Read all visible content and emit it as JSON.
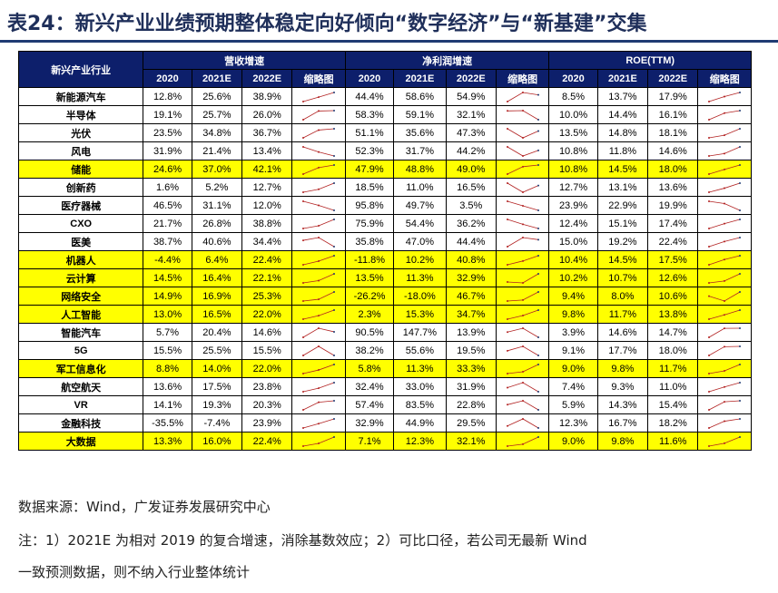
{
  "title": "表24：新兴产业业绩预期整体稳定向好倾向“数字经济”与“新基建”交集",
  "header": {
    "corner": "新兴产业行业",
    "groups": [
      "营收增速",
      "净利润增速",
      "ROE(TTM)"
    ],
    "subcols": [
      "2020",
      "2021E",
      "2022E",
      "缩略图"
    ]
  },
  "rows": [
    {
      "name": "新能源汽车",
      "hl": false,
      "rev": [
        "12.8%",
        "25.6%",
        "38.9%"
      ],
      "np": [
        "44.4%",
        "58.6%",
        "54.9%"
      ],
      "roe": [
        "8.5%",
        "13.7%",
        "17.9%"
      ]
    },
    {
      "name": "半导体",
      "hl": false,
      "rev": [
        "19.1%",
        "25.7%",
        "26.0%"
      ],
      "np": [
        "58.3%",
        "59.1%",
        "32.1%"
      ],
      "roe": [
        "10.0%",
        "14.4%",
        "16.1%"
      ]
    },
    {
      "name": "光伏",
      "hl": false,
      "rev": [
        "23.5%",
        "34.8%",
        "36.7%"
      ],
      "np": [
        "51.1%",
        "35.6%",
        "47.3%"
      ],
      "roe": [
        "13.5%",
        "14.8%",
        "18.1%"
      ]
    },
    {
      "name": "风电",
      "hl": false,
      "rev": [
        "31.9%",
        "21.4%",
        "13.4%"
      ],
      "np": [
        "52.3%",
        "31.7%",
        "44.2%"
      ],
      "roe": [
        "10.8%",
        "11.8%",
        "14.6%"
      ]
    },
    {
      "name": "储能",
      "hl": true,
      "rev": [
        "24.6%",
        "37.0%",
        "42.1%"
      ],
      "np": [
        "47.9%",
        "48.8%",
        "49.0%"
      ],
      "roe": [
        "10.8%",
        "14.5%",
        "18.0%"
      ]
    },
    {
      "name": "创新药",
      "hl": false,
      "rev": [
        "1.6%",
        "5.2%",
        "12.7%"
      ],
      "np": [
        "18.5%",
        "11.0%",
        "16.5%"
      ],
      "roe": [
        "12.7%",
        "13.1%",
        "13.6%"
      ]
    },
    {
      "name": "医疗器械",
      "hl": false,
      "rev": [
        "46.5%",
        "31.1%",
        "12.0%"
      ],
      "np": [
        "95.8%",
        "49.7%",
        "3.5%"
      ],
      "roe": [
        "23.9%",
        "22.9%",
        "19.9%"
      ]
    },
    {
      "name": "CXO",
      "hl": false,
      "rev": [
        "21.7%",
        "26.8%",
        "38.8%"
      ],
      "np": [
        "75.9%",
        "54.4%",
        "36.2%"
      ],
      "roe": [
        "12.4%",
        "15.1%",
        "17.4%"
      ]
    },
    {
      "name": "医美",
      "hl": false,
      "rev": [
        "38.7%",
        "40.6%",
        "34.4%"
      ],
      "np": [
        "35.8%",
        "47.0%",
        "44.4%"
      ],
      "roe": [
        "15.0%",
        "19.2%",
        "22.4%"
      ]
    },
    {
      "name": "机器人",
      "hl": true,
      "rev": [
        "-4.4%",
        "6.4%",
        "22.4%"
      ],
      "np": [
        "-11.8%",
        "10.2%",
        "40.8%"
      ],
      "roe": [
        "10.4%",
        "14.5%",
        "17.5%"
      ]
    },
    {
      "name": "云计算",
      "hl": true,
      "rev": [
        "14.5%",
        "16.4%",
        "22.1%"
      ],
      "np": [
        "13.5%",
        "11.3%",
        "32.9%"
      ],
      "roe": [
        "10.2%",
        "10.7%",
        "12.6%"
      ]
    },
    {
      "name": "网络安全",
      "hl": true,
      "rev": [
        "14.9%",
        "16.9%",
        "25.3%"
      ],
      "np": [
        "-26.2%",
        "-18.0%",
        "46.7%"
      ],
      "roe": [
        "9.4%",
        "8.0%",
        "10.6%"
      ]
    },
    {
      "name": "人工智能",
      "hl": true,
      "rev": [
        "13.0%",
        "16.5%",
        "22.0%"
      ],
      "np": [
        "2.3%",
        "15.3%",
        "34.7%"
      ],
      "roe": [
        "9.8%",
        "11.7%",
        "13.8%"
      ]
    },
    {
      "name": "智能汽车",
      "hl": false,
      "rev": [
        "5.7%",
        "20.4%",
        "14.6%"
      ],
      "np": [
        "90.5%",
        "147.7%",
        "13.9%"
      ],
      "roe": [
        "3.9%",
        "14.6%",
        "14.7%"
      ]
    },
    {
      "name": "5G",
      "hl": false,
      "rev": [
        "15.5%",
        "25.5%",
        "15.5%"
      ],
      "np": [
        "38.2%",
        "55.6%",
        "19.5%"
      ],
      "roe": [
        "9.1%",
        "17.7%",
        "18.0%"
      ]
    },
    {
      "name": "军工信息化",
      "hl": true,
      "rev": [
        "8.8%",
        "14.0%",
        "22.0%"
      ],
      "np": [
        "5.8%",
        "11.3%",
        "33.3%"
      ],
      "roe": [
        "9.0%",
        "9.8%",
        "11.7%"
      ]
    },
    {
      "name": "航空航天",
      "hl": false,
      "rev": [
        "13.6%",
        "17.5%",
        "23.8%"
      ],
      "np": [
        "32.4%",
        "33.0%",
        "31.9%"
      ],
      "roe": [
        "7.4%",
        "9.3%",
        "11.0%"
      ]
    },
    {
      "name": "VR",
      "hl": false,
      "rev": [
        "14.1%",
        "19.3%",
        "20.3%"
      ],
      "np": [
        "57.4%",
        "83.5%",
        "22.8%"
      ],
      "roe": [
        "5.9%",
        "14.3%",
        "15.4%"
      ]
    },
    {
      "name": "金融科技",
      "hl": false,
      "rev": [
        "-35.5%",
        "-7.4%",
        "23.9%"
      ],
      "np": [
        "32.9%",
        "44.9%",
        "29.5%"
      ],
      "roe": [
        "12.3%",
        "16.7%",
        "18.2%"
      ]
    },
    {
      "name": "大数据",
      "hl": true,
      "rev": [
        "13.3%",
        "16.0%",
        "22.4%"
      ],
      "np": [
        "7.1%",
        "12.3%",
        "32.1%"
      ],
      "roe": [
        "9.0%",
        "9.8%",
        "11.6%"
      ]
    }
  ],
  "colors": {
    "header_bg": "#0d1f6b",
    "highlight": "#ffff00",
    "spark_line": "#b22222",
    "spark_last": "#1f3b73",
    "title": "#1f2f5a"
  },
  "footer": {
    "source": "数据来源：Wind，广发证券发展研究中心",
    "note1": "注：1）2021E 为相对 2019 的复合增速，消除基数效应；2）可比口径，若公司无最新 Wind",
    "note2": "一致预测数据，则不纳入行业整体统计"
  }
}
